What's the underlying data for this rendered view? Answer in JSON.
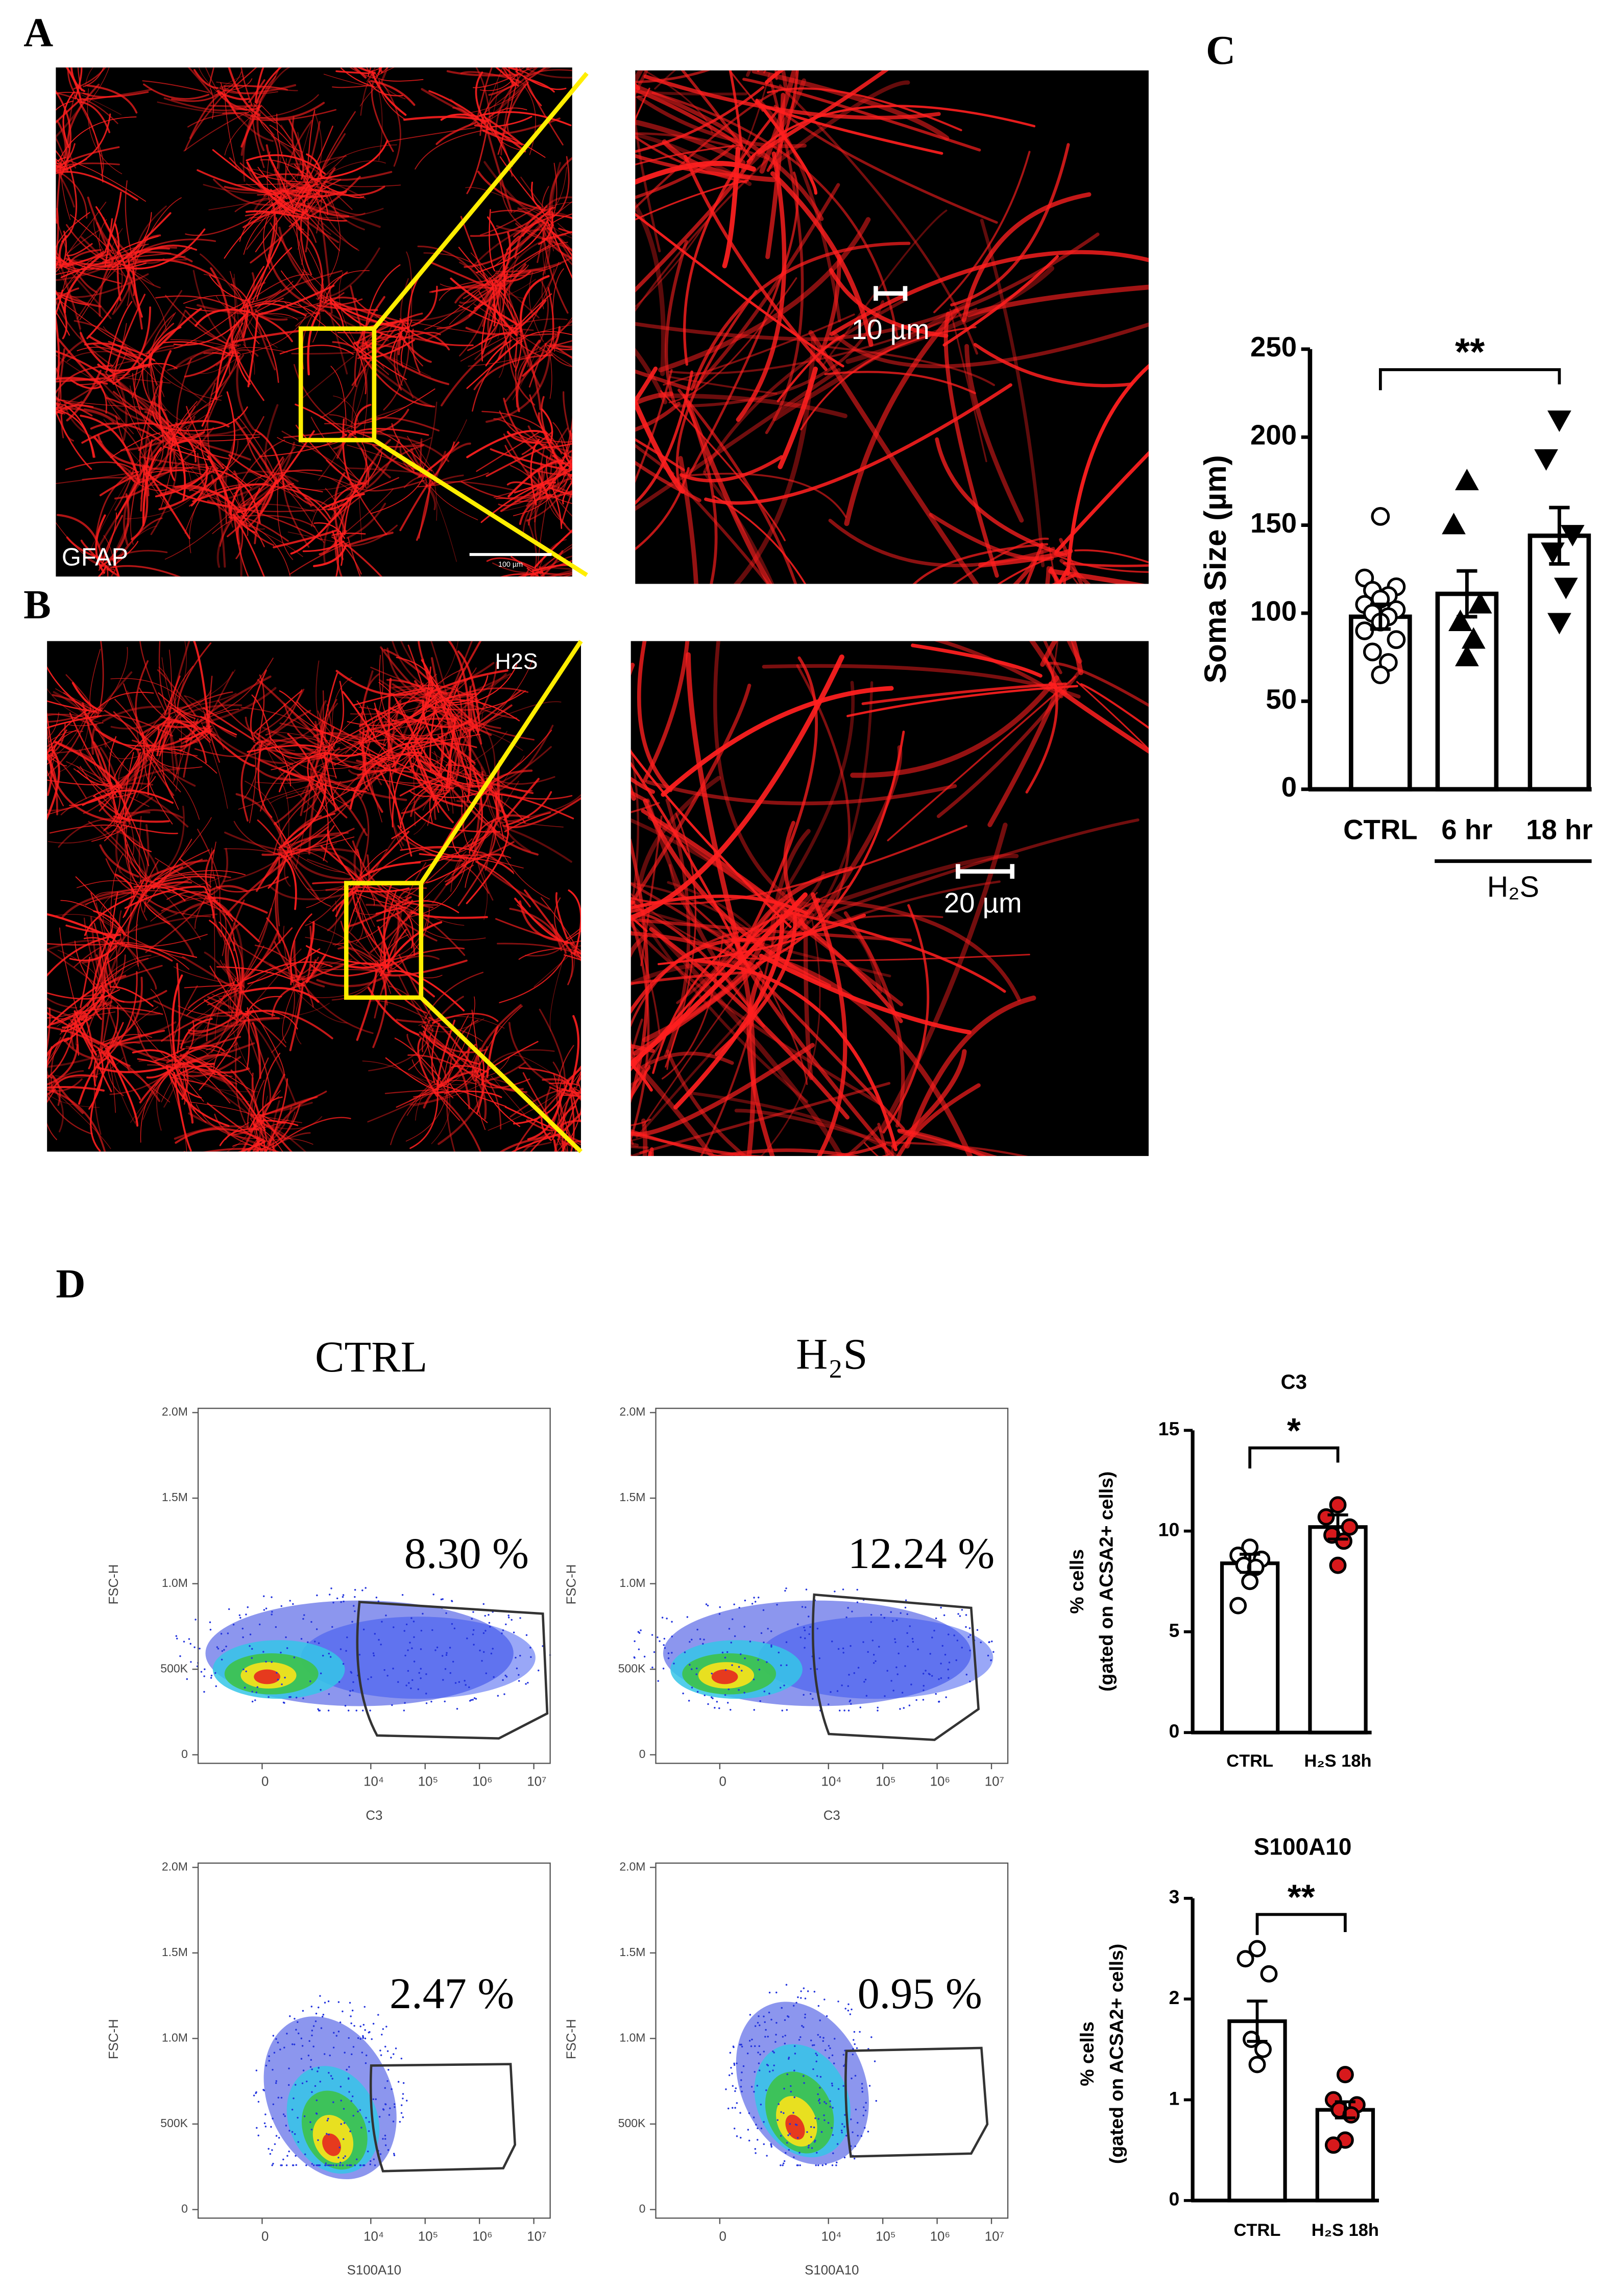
{
  "figure": {
    "panel_labels": [
      "A",
      "B",
      "C",
      "D"
    ],
    "image_labels": {
      "a_marker": "GFAP",
      "a_scale": "100 µm",
      "a_zoom_scale": "10 µm",
      "b_marker": "H2S",
      "b_zoom_scale": "20 µm"
    },
    "flow_columns": [
      "CTRL",
      "H₂S"
    ]
  },
  "chart_data": [
    {
      "type": "bar",
      "ylabel": "Soma Size (µm)",
      "categories": [
        "CTRL",
        "6 hr",
        "18 hr"
      ],
      "values": [
        98,
        111,
        144
      ],
      "errors": [
        7,
        13,
        16
      ],
      "points": [
        [
          155,
          120,
          115,
          113,
          110,
          108,
          105,
          102,
          100,
          98,
          95,
          90,
          85,
          78,
          72,
          65
        ],
        [
          175,
          150,
          105,
          95,
          85,
          75
        ],
        [
          210,
          188,
          145,
          135,
          115,
          95
        ]
      ],
      "point_markers": [
        "circle",
        "triangle",
        "triangle-down"
      ],
      "point_colors": [
        "#ffffff",
        "#000000",
        "#000000"
      ],
      "ylim": [
        0,
        250
      ],
      "yticks": [
        0,
        50,
        100,
        150,
        200,
        250
      ],
      "group": {
        "label": "H₂S",
        "from": 1,
        "to": 2
      },
      "significance": [
        {
          "from": 0,
          "to": 2,
          "label": "**"
        }
      ]
    },
    {
      "type": "flow",
      "xlabel": "C3",
      "ylabel": "FSC-H",
      "xscale": "biexponential",
      "xlim": [
        -1500,
        20000000
      ],
      "xticks": [
        0,
        {
          "value": 10000,
          "label": "10⁴"
        },
        {
          "value": 100000,
          "label": "10⁵"
        },
        {
          "value": 1000000,
          "label": "10⁶"
        },
        {
          "value": 10000000,
          "label": "10⁷"
        }
      ],
      "ylim": [
        -50000,
        2025000
      ],
      "yticks": [
        0,
        {
          "value": 500000,
          "label": "500K"
        },
        {
          "value": 1000000,
          "label": "1.0M"
        },
        {
          "value": 1500000,
          "label": "1.5M"
        },
        {
          "value": 2000000,
          "label": "2.0M"
        }
      ],
      "values": [
        8.3
      ],
      "value_labels": [
        "8.30 %"
      ]
    },
    {
      "type": "flow",
      "xlabel": "C3",
      "ylabel": "FSC-H",
      "xscale": "biexponential",
      "xlim": [
        -1500,
        20000000
      ],
      "xticks": [
        0,
        {
          "value": 10000,
          "label": "10⁴"
        },
        {
          "value": 100000,
          "label": "10⁵"
        },
        {
          "value": 1000000,
          "label": "10⁶"
        },
        {
          "value": 10000000,
          "label": "10⁷"
        }
      ],
      "ylim": [
        -50000,
        2025000
      ],
      "yticks": [
        0,
        {
          "value": 500000,
          "label": "500K"
        },
        {
          "value": 1000000,
          "label": "1.0M"
        },
        {
          "value": 1500000,
          "label": "1.5M"
        },
        {
          "value": 2000000,
          "label": "2.0M"
        }
      ],
      "values": [
        12.24
      ],
      "value_labels": [
        "12.24 %"
      ]
    },
    {
      "type": "flow",
      "xlabel": "S100A10",
      "ylabel": "FSC-H",
      "xscale": "biexponential",
      "xlim": [
        -1500,
        20000000
      ],
      "xticks": [
        0,
        {
          "value": 10000,
          "label": "10⁴"
        },
        {
          "value": 100000,
          "label": "10⁵"
        },
        {
          "value": 1000000,
          "label": "10⁶"
        },
        {
          "value": 10000000,
          "label": "10⁷"
        }
      ],
      "ylim": [
        -50000,
        2025000
      ],
      "yticks": [
        0,
        {
          "value": 500000,
          "label": "500K"
        },
        {
          "value": 1000000,
          "label": "1.0M"
        },
        {
          "value": 1500000,
          "label": "1.5M"
        },
        {
          "value": 2000000,
          "label": "2.0M"
        }
      ],
      "values": [
        2.47
      ],
      "value_labels": [
        "2.47 %"
      ]
    },
    {
      "type": "flow",
      "xlabel": "S100A10",
      "ylabel": "FSC-H",
      "xscale": "biexponential",
      "xlim": [
        -1500,
        20000000
      ],
      "xticks": [
        0,
        {
          "value": 10000,
          "label": "10⁴"
        },
        {
          "value": 100000,
          "label": "10⁵"
        },
        {
          "value": 1000000,
          "label": "10⁶"
        },
        {
          "value": 10000000,
          "label": "10⁷"
        }
      ],
      "ylim": [
        -50000,
        2025000
      ],
      "yticks": [
        0,
        {
          "value": 500000,
          "label": "500K"
        },
        {
          "value": 1000000,
          "label": "1.0M"
        },
        {
          "value": 1500000,
          "label": "1.5M"
        },
        {
          "value": 2000000,
          "label": "2.0M"
        }
      ],
      "values": [
        0.95
      ],
      "value_labels": [
        "0.95 %"
      ]
    },
    {
      "type": "bar",
      "title": "C3",
      "ylabel": [
        "% cells",
        "(gated on ACSA2+ cells)"
      ],
      "categories": [
        "CTRL",
        "H₂S 18h"
      ],
      "values": [
        8.4,
        10.2
      ],
      "errors": [
        0.45,
        0.6
      ],
      "points": [
        [
          9.2,
          8.8,
          8.6,
          8.3,
          8.2,
          7.5,
          6.3
        ],
        [
          11.3,
          10.7,
          10.2,
          9.8,
          9.5,
          8.3
        ]
      ],
      "point_markers": [
        "circle",
        "circle"
      ],
      "point_colors": [
        "#ffffff",
        "#d7191c"
      ],
      "ylim": [
        0,
        15
      ],
      "yticks": [
        0,
        5,
        10,
        15
      ],
      "significance": [
        {
          "from": 0,
          "to": 1,
          "label": "*"
        }
      ]
    },
    {
      "type": "bar",
      "title": "S100A10",
      "ylabel": [
        "% cells",
        "(gated on ACSA2+ cells)"
      ],
      "categories": [
        "CTRL",
        "H₂S 18h"
      ],
      "values": [
        1.78,
        0.9
      ],
      "errors": [
        0.2,
        0.08
      ],
      "points": [
        [
          2.5,
          2.4,
          2.25,
          1.6,
          1.5,
          1.35
        ],
        [
          1.25,
          1.0,
          0.95,
          0.9,
          0.85,
          0.6,
          0.55
        ]
      ],
      "point_markers": [
        "circle",
        "circle"
      ],
      "point_colors": [
        "#ffffff",
        "#d7191c"
      ],
      "ylim": [
        0,
        3
      ],
      "yticks": [
        0,
        1,
        2,
        3
      ],
      "significance": [
        {
          "from": 0,
          "to": 1,
          "label": "**"
        }
      ]
    }
  ]
}
